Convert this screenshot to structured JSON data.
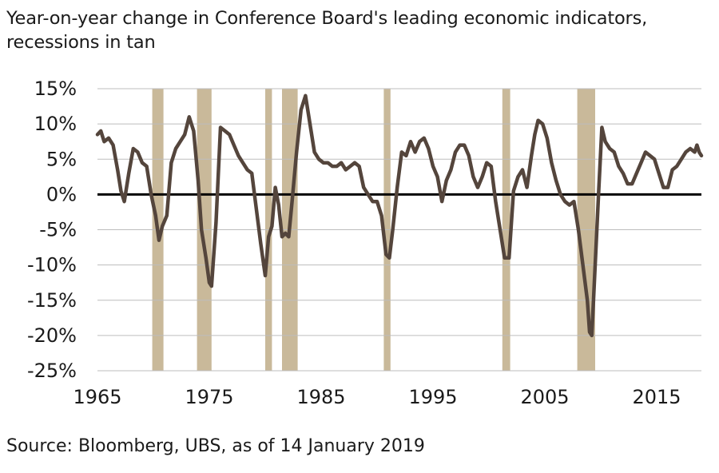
{
  "title_line1": "Year-on-year change in Conference Board's leading economic indicators,",
  "title_line2": "recessions in tan",
  "source": "Source: Bloomberg, UBS, as of 14 January 2019",
  "colors": {
    "line": "#54453c",
    "recession": "#c9b99a",
    "grid": "#bdbdbd",
    "zero": "#000000"
  },
  "chart_data": {
    "type": "line",
    "title": "Year-on-year change in Conference Board's leading economic indicators, recessions in tan",
    "xlabel": "",
    "ylabel": "",
    "xlim": [
      1965,
      2019
    ],
    "ylim": [
      -25,
      15
    ],
    "y_ticks": [
      15,
      10,
      5,
      0,
      -5,
      -10,
      -15,
      -20,
      -25
    ],
    "y_tick_labels": [
      "15%",
      "10%",
      "5%",
      "0%",
      "-5%",
      "-10%",
      "-15%",
      "-20%",
      "-25%"
    ],
    "x_ticks": [
      1965,
      1975,
      1985,
      1995,
      2005,
      2015
    ],
    "x_tick_labels": [
      "1965",
      "1975",
      "1985",
      "1995",
      "2005",
      "2015"
    ],
    "grid": "horizontal",
    "recessions": [
      {
        "start": 1969.9,
        "end": 1970.9
      },
      {
        "start": 1973.9,
        "end": 1975.2
      },
      {
        "start": 1980.0,
        "end": 1980.6
      },
      {
        "start": 1981.5,
        "end": 1982.9
      },
      {
        "start": 1990.6,
        "end": 1991.2
      },
      {
        "start": 2001.2,
        "end": 2001.9
      },
      {
        "start": 2007.9,
        "end": 2009.5
      }
    ],
    "series": [
      {
        "x": [
          1965.0,
          1965.3,
          1965.6,
          1966.0,
          1966.4,
          1966.8,
          1967.1,
          1967.4,
          1967.8,
          1968.2,
          1968.6,
          1969.0,
          1969.4,
          1969.8,
          1970.2,
          1970.5,
          1970.8,
          1971.2,
          1971.6,
          1972.0,
          1972.4,
          1972.8,
          1973.2,
          1973.6,
          1974.0,
          1974.3,
          1974.7,
          1975.0,
          1975.2,
          1975.6,
          1976.0,
          1976.4,
          1976.8,
          1977.2,
          1977.6,
          1978.0,
          1978.4,
          1978.8,
          1979.2,
          1979.6,
          1980.0,
          1980.3,
          1980.6,
          1980.9,
          1981.2,
          1981.5,
          1981.8,
          1982.1,
          1982.4,
          1982.8,
          1983.2,
          1983.6,
          1984.0,
          1984.4,
          1984.8,
          1985.2,
          1985.6,
          1986.0,
          1986.4,
          1986.8,
          1987.2,
          1987.6,
          1988.0,
          1988.4,
          1988.8,
          1989.2,
          1989.6,
          1990.0,
          1990.4,
          1990.8,
          1991.1,
          1991.4,
          1991.8,
          1992.2,
          1992.6,
          1993.0,
          1993.4,
          1993.8,
          1994.2,
          1994.6,
          1995.0,
          1995.4,
          1995.8,
          1996.2,
          1996.6,
          1997.0,
          1997.4,
          1997.8,
          1998.2,
          1998.6,
          1999.0,
          1999.4,
          1999.8,
          2000.2,
          2000.6,
          2001.0,
          2001.4,
          2001.8,
          2002.2,
          2002.6,
          2003.0,
          2003.4,
          2003.8,
          2004.1,
          2004.4,
          2004.8,
          2005.2,
          2005.6,
          2006.0,
          2006.4,
          2006.8,
          2007.2,
          2007.6,
          2008.0,
          2008.4,
          2008.8,
          2009.0,
          2009.2,
          2009.5,
          2009.8,
          2010.1,
          2010.4,
          2010.8,
          2011.2,
          2011.6,
          2012.0,
          2012.4,
          2012.8,
          2013.2,
          2013.6,
          2014.0,
          2014.4,
          2014.8,
          2015.2,
          2015.6,
          2016.0,
          2016.4,
          2016.8,
          2017.2,
          2017.6,
          2018.0,
          2018.4,
          2018.6,
          2018.8,
          2019.0
        ],
        "y": [
          8.5,
          9.0,
          7.5,
          8.0,
          7.0,
          3.5,
          0.5,
          -1.0,
          3.0,
          6.5,
          6.0,
          4.5,
          4.0,
          0.0,
          -3.0,
          -6.5,
          -4.5,
          -3.0,
          4.5,
          6.5,
          7.5,
          8.5,
          11.0,
          9.0,
          2.0,
          -5.0,
          -9.0,
          -12.5,
          -13.0,
          -4.0,
          9.5,
          9.0,
          8.5,
          7.0,
          5.5,
          4.5,
          3.5,
          3.0,
          -2.0,
          -7.0,
          -11.5,
          -6.0,
          -4.5,
          1.0,
          -1.5,
          -6.0,
          -5.5,
          -6.0,
          -1.0,
          6.0,
          12.0,
          14.0,
          10.0,
          6.0,
          5.0,
          4.5,
          4.5,
          4.0,
          4.0,
          4.5,
          3.5,
          4.0,
          4.5,
          4.0,
          1.0,
          0.0,
          -1.0,
          -1.0,
          -3.0,
          -8.5,
          -9.0,
          -5.0,
          1.0,
          6.0,
          5.5,
          7.5,
          6.0,
          7.5,
          8.0,
          6.5,
          4.0,
          2.5,
          -1.0,
          2.0,
          3.5,
          6.0,
          7.0,
          7.0,
          5.5,
          2.5,
          1.0,
          2.5,
          4.5,
          4.0,
          -1.0,
          -5.0,
          -9.0,
          -9.0,
          0.5,
          2.5,
          3.5,
          1.0,
          5.5,
          8.5,
          10.5,
          10.0,
          8.0,
          4.5,
          2.0,
          0.0,
          -1.0,
          -1.5,
          -1.0,
          -5.0,
          -10.0,
          -15.0,
          -19.5,
          -20.0,
          -10.0,
          0.0,
          9.5,
          7.5,
          6.5,
          6.0,
          4.0,
          3.0,
          1.5,
          1.5,
          3.0,
          4.5,
          6.0,
          5.5,
          5.0,
          3.0,
          1.0,
          1.0,
          3.5,
          4.0,
          5.0,
          6.0,
          6.5,
          6.0,
          7.0,
          6.0,
          5.5
        ]
      }
    ]
  }
}
